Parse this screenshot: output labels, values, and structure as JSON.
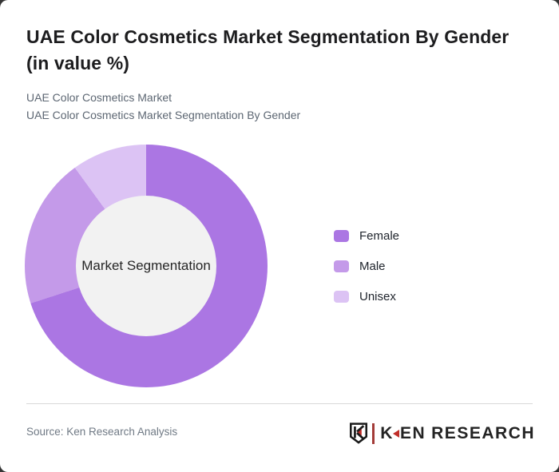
{
  "card": {
    "title_line1": "UAE Color Cosmetics Market Segmentation By Gender",
    "title_line2": "(in value %)",
    "subtitle_line1": "UAE Color Cosmetics Market",
    "subtitle_line2": "UAE Color Cosmetics Market Segmentation By Gender",
    "source": "Source: Ken Research Analysis"
  },
  "chart_data": {
    "type": "pie",
    "donut": true,
    "title": "UAE Color Cosmetics Market Segmentation By Gender (in value %)",
    "center_label": "Market Segmentation",
    "categories": [
      "Female",
      "Male",
      "Unisex"
    ],
    "values": [
      70,
      20,
      10
    ],
    "colors": [
      "#ab76e3",
      "#c49ae9",
      "#dcc3f4"
    ],
    "inner_color": "#f2f2f2",
    "legend_position": "right",
    "start_angle_deg": 0,
    "direction": "clockwise"
  },
  "logo": {
    "emblem_name": "ken-research-shield-k",
    "wordmark_k": "K",
    "wordmark_en": "EN",
    "wordmark_space": " ",
    "wordmark_research": "RESEARCH",
    "accent_color": "#c12f2a",
    "dark_color": "#232323"
  }
}
